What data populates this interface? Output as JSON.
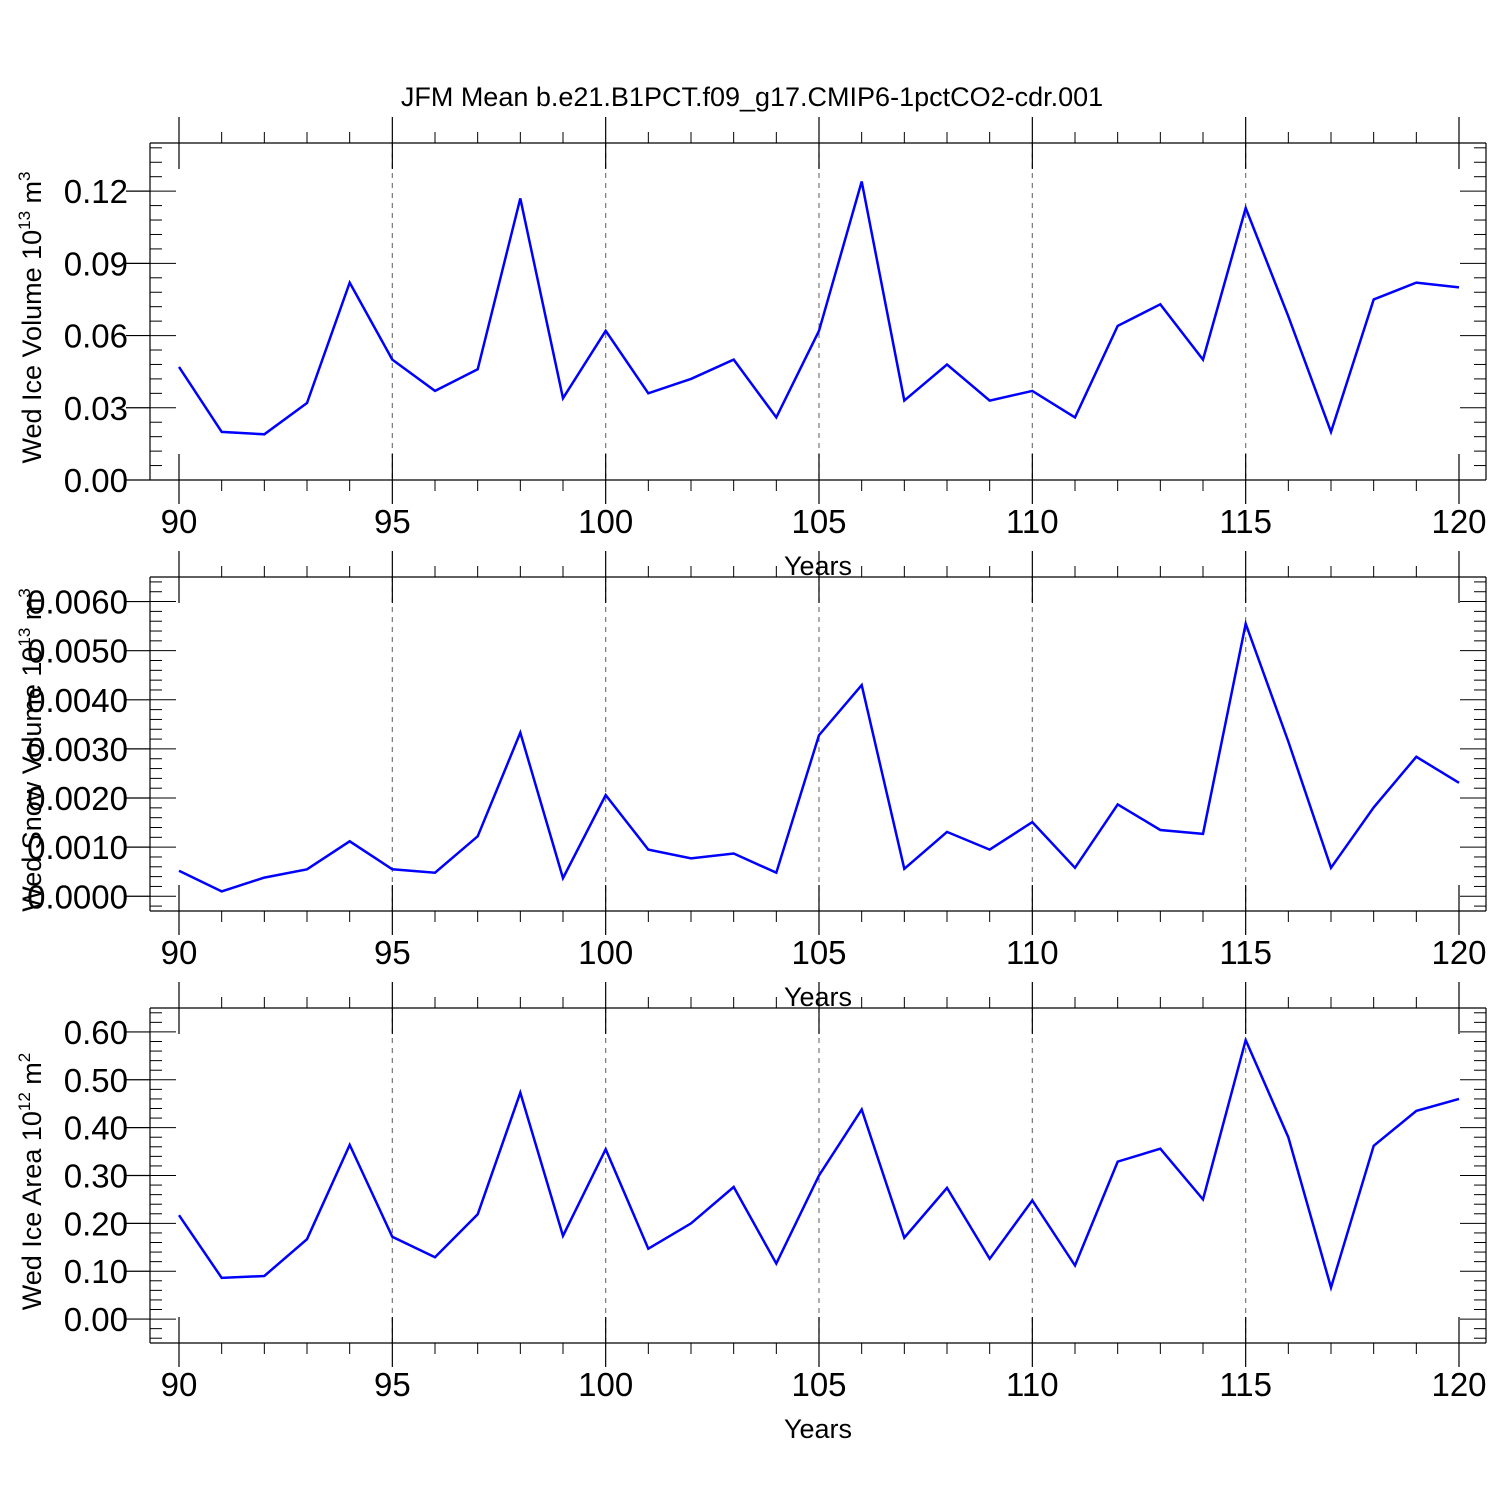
{
  "figure": {
    "title": "JFM Mean b.e21.B1PCT.f09_g17.CMIP6-1pctCO2-cdr.001"
  },
  "chart_data": [
    {
      "type": "line",
      "title": "JFM Mean b.e21.B1PCT.f09_g17.CMIP6-1pctCO2-cdr.001",
      "xlabel": "Years",
      "ylabel": {
        "base": "Wed Ice Volume 10",
        "exponent": "13",
        "unit": " m",
        "unit_exponent": "3"
      },
      "xlim": [
        90,
        120
      ],
      "ylim": [
        0,
        0.14
      ],
      "xticks": [
        90,
        95,
        100,
        105,
        110,
        115,
        120
      ],
      "xtick_labels": [
        "90",
        "95",
        "100",
        "105",
        "110",
        "115",
        "120"
      ],
      "yticks": [
        0,
        0.03,
        0.06,
        0.09,
        0.12
      ],
      "ytick_labels": [
        "0.00",
        "0.03",
        "0.06",
        "0.09",
        "0.12"
      ],
      "grid": "vertical dashed at major x ticks",
      "line_color": "#0000ff",
      "x": [
        90,
        91,
        92,
        93,
        94,
        95,
        96,
        97,
        98,
        99,
        100,
        101,
        102,
        103,
        104,
        105,
        106,
        107,
        108,
        109,
        110,
        111,
        112,
        113,
        114,
        115,
        116,
        117,
        118,
        119,
        120
      ],
      "values": [
        0.047,
        0.02,
        0.019,
        0.032,
        0.082,
        0.05,
        0.037,
        0.046,
        0.117,
        0.034,
        0.062,
        0.036,
        0.042,
        0.05,
        0.026,
        0.062,
        0.124,
        0.033,
        0.048,
        0.033,
        0.037,
        0.026,
        0.064,
        0.073,
        0.05,
        0.113,
        0.068,
        0.02,
        0.075,
        0.082,
        0.08
      ]
    },
    {
      "type": "line",
      "xlabel": "Years",
      "ylabel": {
        "base": "Wed Snow Volume 10",
        "exponent": "13",
        "unit": " m",
        "unit_exponent": "3"
      },
      "xlim": [
        90,
        120
      ],
      "ylim": [
        -0.0003,
        0.0065
      ],
      "xticks": [
        90,
        95,
        100,
        105,
        110,
        115,
        120
      ],
      "xtick_labels": [
        "90",
        "95",
        "100",
        "105",
        "110",
        "115",
        "120"
      ],
      "yticks": [
        0,
        0.001,
        0.002,
        0.003,
        0.004,
        0.005,
        0.006
      ],
      "ytick_labels": [
        "0.0000",
        "0.0010",
        "0.0020",
        "0.0030",
        "0.0040",
        "0.0050",
        "0.0060"
      ],
      "grid": "vertical dashed at major x ticks",
      "line_color": "#0000ff",
      "x": [
        90,
        91,
        92,
        93,
        94,
        95,
        96,
        97,
        98,
        99,
        100,
        101,
        102,
        103,
        104,
        105,
        106,
        107,
        108,
        109,
        110,
        111,
        112,
        113,
        114,
        115,
        116,
        117,
        118,
        119,
        120
      ],
      "values": [
        0.00052,
        0.0001,
        0.00038,
        0.00055,
        0.00112,
        0.00055,
        0.00048,
        0.00122,
        0.00333,
        0.00037,
        0.00206,
        0.00095,
        0.00077,
        0.00087,
        0.00048,
        0.00328,
        0.0043,
        0.00056,
        0.00131,
        0.00095,
        0.00151,
        0.00058,
        0.00187,
        0.00135,
        0.00127,
        0.00555,
        0.00315,
        0.00058,
        0.00181,
        0.00284,
        0.00231
      ]
    },
    {
      "type": "line",
      "xlabel": "Years",
      "ylabel": {
        "base": "Wed Ice Area 10",
        "exponent": "12",
        "unit": " m",
        "unit_exponent": "2"
      },
      "xlim": [
        90,
        120
      ],
      "ylim": [
        -0.05,
        0.65
      ],
      "xticks": [
        90,
        95,
        100,
        105,
        110,
        115,
        120
      ],
      "xtick_labels": [
        "90",
        "95",
        "100",
        "105",
        "110",
        "115",
        "120"
      ],
      "yticks": [
        0,
        0.1,
        0.2,
        0.3,
        0.4,
        0.5,
        0.6
      ],
      "ytick_labels": [
        "0.00",
        "0.10",
        "0.20",
        "0.30",
        "0.40",
        "0.50",
        "0.60"
      ],
      "grid": "vertical dashed at major x ticks",
      "line_color": "#0000ff",
      "x": [
        90,
        91,
        92,
        93,
        94,
        95,
        96,
        97,
        98,
        99,
        100,
        101,
        102,
        103,
        104,
        105,
        106,
        107,
        108,
        109,
        110,
        111,
        112,
        113,
        114,
        115,
        116,
        117,
        118,
        119,
        120
      ],
      "values": [
        0.217,
        0.086,
        0.09,
        0.167,
        0.364,
        0.172,
        0.129,
        0.219,
        0.473,
        0.174,
        0.355,
        0.147,
        0.2,
        0.276,
        0.116,
        0.3,
        0.438,
        0.17,
        0.274,
        0.126,
        0.248,
        0.112,
        0.329,
        0.356,
        0.25,
        0.583,
        0.38,
        0.066,
        0.362,
        0.435,
        0.46
      ]
    }
  ]
}
